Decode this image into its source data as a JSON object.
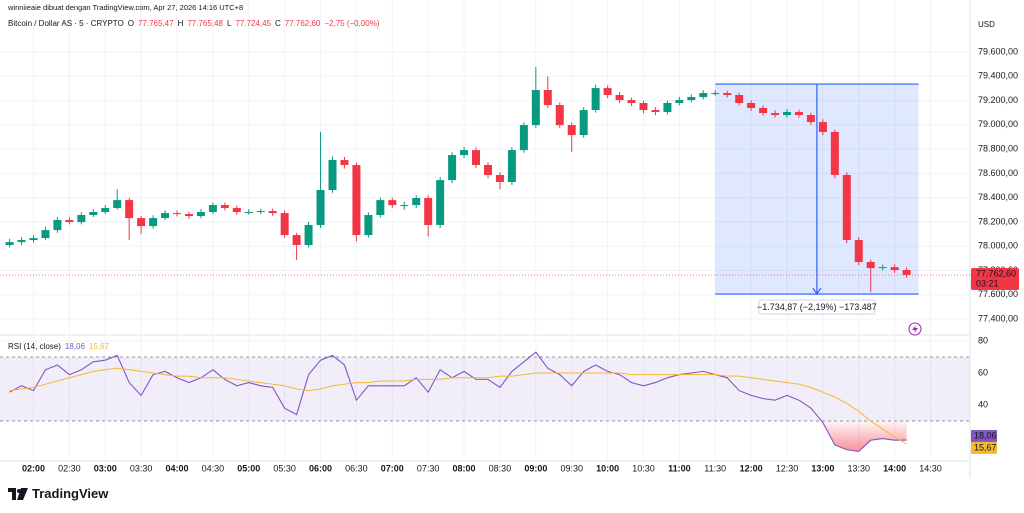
{
  "credit": "winniieaie dibuat dengan TradingView.com, Apr 27, 2026 14:16 UTC+8",
  "logo": "TradingView",
  "chart_data": [
    {
      "type": "candlestick",
      "title": "Bitcoin / Dollar AS · 5 · CRYPTO",
      "ohlc": [
        {
          "label": "O",
          "value": "77.765,47"
        },
        {
          "label": "H",
          "value": "77.765,48"
        },
        {
          "label": "L",
          "value": "77.724,45"
        },
        {
          "label": "C",
          "value": "77.762,60"
        }
      ],
      "change": "−2,75 (−0,00%)",
      "currency": "USD",
      "x": [
        "01:40",
        "01:50",
        "02:00",
        "02:10",
        "02:20",
        "02:30",
        "02:40",
        "02:50",
        "03:00",
        "03:10",
        "03:20",
        "03:30",
        "03:40",
        "03:50",
        "04:00",
        "04:10",
        "04:20",
        "04:30",
        "04:40",
        "04:50",
        "05:00",
        "05:10",
        "05:20",
        "05:30",
        "05:40",
        "05:50",
        "06:00",
        "06:10",
        "06:20",
        "06:30",
        "06:40",
        "06:50",
        "07:00",
        "07:10",
        "07:20",
        "07:30",
        "07:40",
        "07:50",
        "08:00",
        "08:10",
        "08:20",
        "08:30",
        "08:40",
        "08:50",
        "09:00",
        "09:10",
        "09:20",
        "09:30",
        "09:40",
        "09:50",
        "10:00",
        "10:10",
        "10:20",
        "10:30",
        "10:40",
        "10:50",
        "11:00",
        "11:10",
        "11:20",
        "11:30",
        "11:40",
        "11:50",
        "12:00",
        "12:10",
        "12:20",
        "12:30",
        "12:40",
        "12:50",
        "13:00",
        "13:10",
        "13:20",
        "13:30",
        "13:40",
        "13:50",
        "14:00",
        "14:10"
      ],
      "open": [
        78010,
        78034,
        78051,
        78067,
        78133,
        78216,
        78199,
        78257,
        78282,
        78315,
        78380,
        78232,
        78166,
        78232,
        78273,
        78265,
        78249,
        78282,
        78339,
        78315,
        78282,
        78282,
        78290,
        78273,
        78092,
        78010,
        78175,
        78463,
        78710,
        78669,
        78092,
        78257,
        78380,
        78339,
        78339,
        78397,
        78175,
        78545,
        78751,
        78792,
        78669,
        78587,
        78529,
        78792,
        78998,
        79287,
        79163,
        78998,
        78916,
        79122,
        79303,
        79246,
        79204,
        79180,
        79122,
        79106,
        79180,
        79204,
        79229,
        79262,
        79262,
        79246,
        79180,
        79139,
        79097,
        79081,
        79106,
        79081,
        79023,
        78941,
        78587,
        78051,
        77870,
        77820,
        77828,
        77804
      ],
      "high": [
        78060,
        78075,
        78090,
        78160,
        78240,
        78240,
        78280,
        78305,
        78340,
        78470,
        78400,
        78250,
        78255,
        78295,
        78295,
        78285,
        78305,
        78360,
        78360,
        78335,
        78305,
        78310,
        78310,
        78295,
        78110,
        78200,
        78941,
        78740,
        78735,
        78690,
        78280,
        78400,
        78400,
        78365,
        78420,
        78420,
        78570,
        78775,
        78820,
        78815,
        78690,
        78610,
        78815,
        79020,
        79476,
        79400,
        79185,
        79020,
        79145,
        79330,
        79325,
        79270,
        79225,
        79200,
        79145,
        79200,
        79230,
        79250,
        79285,
        79285,
        79280,
        79265,
        79200,
        79160,
        79120,
        79130,
        79125,
        79100,
        79045,
        78960,
        78610,
        78075,
        77890,
        77850,
        77850,
        77825
      ],
      "low": [
        77990,
        78010,
        78030,
        78050,
        78110,
        78180,
        78180,
        78240,
        78265,
        78300,
        78050,
        78100,
        78145,
        78215,
        78245,
        78225,
        78230,
        78265,
        78295,
        78260,
        78260,
        78265,
        78250,
        78070,
        77886,
        77990,
        78150,
        78440,
        78640,
        78040,
        78070,
        78235,
        78315,
        78300,
        78315,
        78080,
        78150,
        78520,
        78725,
        78645,
        78560,
        78470,
        78505,
        78770,
        78975,
        79140,
        78975,
        78776,
        78895,
        79100,
        79220,
        79180,
        79155,
        79095,
        79080,
        79085,
        79160,
        79185,
        79210,
        79240,
        79225,
        79160,
        79115,
        79075,
        79060,
        79060,
        79060,
        79000,
        78915,
        78560,
        78025,
        77845,
        77622,
        77800,
        77780,
        77740
      ],
      "close": [
        78034,
        78051,
        78067,
        78133,
        78216,
        78199,
        78257,
        78282,
        78315,
        78380,
        78232,
        78166,
        78232,
        78273,
        78265,
        78249,
        78282,
        78339,
        78315,
        78282,
        78282,
        78290,
        78273,
        78092,
        78010,
        78175,
        78463,
        78710,
        78669,
        78092,
        78257,
        78380,
        78339,
        78339,
        78397,
        78175,
        78545,
        78751,
        78792,
        78669,
        78587,
        78529,
        78792,
        78998,
        79287,
        79163,
        78998,
        78916,
        79122,
        79303,
        79246,
        79204,
        79180,
        79122,
        79106,
        79180,
        79204,
        79229,
        79262,
        79262,
        79246,
        79180,
        79139,
        79097,
        79081,
        79106,
        79081,
        79023,
        78941,
        78587,
        78051,
        77870,
        77820,
        77828,
        77804,
        77762.6
      ],
      "up_color": "#089981",
      "down_color": "#f23645",
      "xlim": [
        "01:32",
        "15:03"
      ],
      "xticks": [
        "02:00",
        "02:30",
        "03:00",
        "03:30",
        "04:00",
        "04:30",
        "05:00",
        "05:30",
        "06:00",
        "06:30",
        "07:00",
        "07:30",
        "08:00",
        "08:30",
        "09:00",
        "09:30",
        "10:00",
        "10:30",
        "11:00",
        "11:30",
        "12:00",
        "12:30",
        "13:00",
        "13:30",
        "14:00",
        "14:30"
      ],
      "ylim": [
        77285,
        79905
      ],
      "yticks": [
        {
          "value": 77400,
          "label": "77.400,00"
        },
        {
          "value": 77600,
          "label": "77.600,00"
        },
        {
          "value": 77800,
          "label": "77.800,00"
        },
        {
          "value": 78000,
          "label": "78.000,00"
        },
        {
          "value": 78200,
          "label": "78.200,00"
        },
        {
          "value": 78400,
          "label": "78.400,00"
        },
        {
          "value": 78600,
          "label": "78.600,00"
        },
        {
          "value": 78800,
          "label": "78.800,00"
        },
        {
          "value": 79000,
          "label": "79.000,00"
        },
        {
          "value": 79200,
          "label": "79.200,00"
        },
        {
          "value": 79400,
          "label": "79.400,00"
        },
        {
          "value": 79600,
          "label": "79.600,00"
        }
      ],
      "grid": true,
      "last_price": {
        "value": 77762.6,
        "label": "77.762,60",
        "countdown": "03:21"
      },
      "measure": {
        "x": [
          "11:30",
          "14:20"
        ],
        "y": [
          79336,
          77606
        ],
        "label": "−1.734,87 (−2,19%) −173.487",
        "color": "#2962ff"
      }
    },
    {
      "type": "line",
      "title": "RSI (14, close)",
      "series": [
        {
          "color": "#7e57c2",
          "last_label": "18,06",
          "values": [
            48,
            52,
            49,
            62,
            65,
            59,
            62,
            67,
            68,
            71,
            54,
            46,
            59,
            61,
            57,
            54,
            57,
            62,
            56,
            52,
            54,
            52,
            51,
            38,
            34,
            59,
            68,
            71,
            65,
            43,
            52,
            52,
            52,
            52,
            57,
            48,
            62,
            57,
            61,
            56,
            56,
            51,
            61,
            67,
            73,
            63,
            59,
            52,
            61,
            65,
            61,
            59,
            54,
            52,
            54,
            57,
            59,
            60,
            61,
            59,
            57,
            49,
            46,
            44,
            43,
            46,
            43,
            38,
            29,
            15,
            12,
            11,
            18,
            19,
            18,
            18.06
          ]
        },
        {
          "color": "#f5b82e",
          "last_label": "15,67",
          "values": [
            49,
            50,
            51,
            53,
            55,
            57,
            59,
            61,
            62,
            63,
            62,
            61,
            60,
            59,
            58,
            58,
            57,
            57,
            57,
            56,
            55,
            54,
            53,
            52,
            50,
            49,
            50,
            52,
            53,
            54,
            54,
            55,
            55,
            55,
            56,
            56,
            56,
            57,
            57,
            57,
            57,
            58,
            58,
            59,
            60,
            60,
            60,
            60,
            60,
            60,
            60,
            60,
            59,
            59,
            59,
            59,
            59,
            59,
            59,
            59,
            58,
            58,
            57,
            56,
            55,
            54,
            53,
            51,
            48,
            45,
            41,
            36,
            30,
            25,
            20,
            15.67
          ]
        }
      ],
      "ylim": [
        5.6,
        82.5
      ],
      "yticks": [
        40,
        60,
        80
      ],
      "band": [
        30,
        70
      ],
      "grid": true
    }
  ]
}
